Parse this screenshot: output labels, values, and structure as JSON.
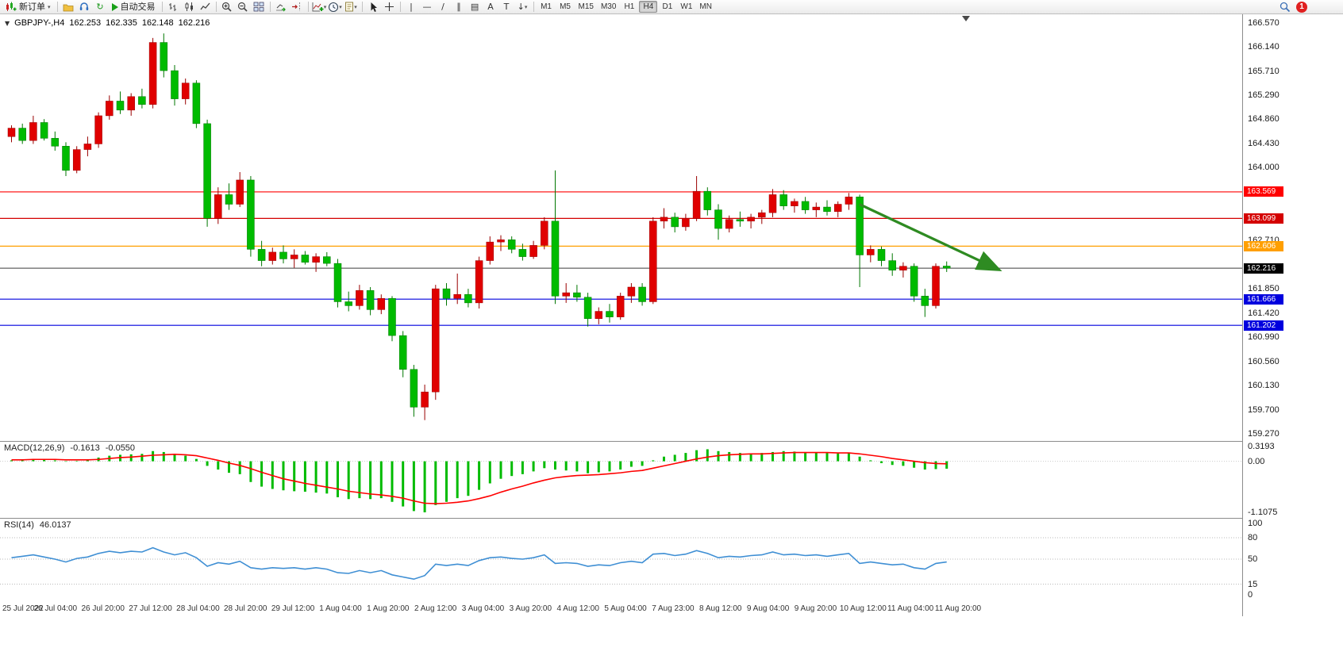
{
  "toolbar": {
    "new_order_label": "新订单",
    "auto_trading_label": "自动交易",
    "timeframes": [
      "M1",
      "M5",
      "M15",
      "M30",
      "H1",
      "H4",
      "D1",
      "W1",
      "MN"
    ],
    "active_timeframe": "H4",
    "notification_count": "1",
    "icons": {
      "caret": "▾",
      "refresh": "↻",
      "vertical_line": "|",
      "horizontal_line": "—",
      "trendline": "/",
      "channel": "∥",
      "fibonacci": "▤",
      "text": "A",
      "text_label": "T",
      "arrow_tool": "↓"
    }
  },
  "chart_header": {
    "menu_marker": "▼",
    "symbol_period": "GBPJPY-,H4",
    "open": "162.253",
    "high": "162.335",
    "low": "162.148",
    "close": "162.216"
  },
  "indicator_labels": {
    "macd_name": "MACD(12,26,9)",
    "macd_value1": "-0.1613",
    "macd_value2": "-0.0550",
    "rsi_name": "RSI(14)",
    "rsi_value": "46.0137"
  },
  "chart_data": {
    "type": "candlestick+indicators",
    "symbol": "GBPJPY-",
    "period": "H4",
    "price": {
      "ylim": [
        159.15,
        166.72
      ],
      "ticks": [
        {
          "v": 166.57,
          "label": "166.570"
        },
        {
          "v": 166.14,
          "label": "166.140"
        },
        {
          "v": 165.71,
          "label": "165.710"
        },
        {
          "v": 165.29,
          "label": "165.290"
        },
        {
          "v": 164.86,
          "label": "164.860"
        },
        {
          "v": 164.43,
          "label": "164.430"
        },
        {
          "v": 164.0,
          "label": "164.000"
        },
        {
          "v": 162.71,
          "label": "162.710"
        },
        {
          "v": 161.85,
          "label": "161.850"
        },
        {
          "v": 161.42,
          "label": "161.420"
        },
        {
          "v": 160.99,
          "label": "160.990"
        },
        {
          "v": 160.56,
          "label": "160.560"
        },
        {
          "v": 160.13,
          "label": "160.130"
        },
        {
          "v": 159.7,
          "label": "159.700"
        },
        {
          "v": 159.27,
          "label": "159.270"
        }
      ],
      "levels": [
        {
          "price": 163.569,
          "label": "163.569",
          "color": "#FF0000"
        },
        {
          "price": 163.099,
          "label": "163.099",
          "color": "#D40000"
        },
        {
          "price": 162.606,
          "label": "162.606",
          "color": "#FF9F00"
        },
        {
          "price": 161.666,
          "label": "161.666",
          "color": "#0000DE"
        },
        {
          "price": 161.202,
          "label": "161.202",
          "color": "#0000DE"
        }
      ],
      "current_price": {
        "price": 162.216,
        "label": "162.216",
        "color": "#000000"
      },
      "up_color": "#E00000",
      "down_color": "#00BB00",
      "candles": [
        [
          164.55,
          164.75,
          164.45,
          164.7
        ],
        [
          164.7,
          164.78,
          164.42,
          164.48
        ],
        [
          164.48,
          164.92,
          164.42,
          164.8
        ],
        [
          164.8,
          164.86,
          164.48,
          164.52
        ],
        [
          164.52,
          164.64,
          164.3,
          164.38
        ],
        [
          164.38,
          164.45,
          163.85,
          163.95
        ],
        [
          163.95,
          164.38,
          163.9,
          164.32
        ],
        [
          164.32,
          164.55,
          164.2,
          164.42
        ],
        [
          164.42,
          164.98,
          164.35,
          164.92
        ],
        [
          164.92,
          165.28,
          164.85,
          165.18
        ],
        [
          165.18,
          165.35,
          164.95,
          165.02
        ],
        [
          165.02,
          165.32,
          164.92,
          165.26
        ],
        [
          165.26,
          165.4,
          165.05,
          165.12
        ],
        [
          165.12,
          166.3,
          165.05,
          166.22
        ],
        [
          166.22,
          166.38,
          165.6,
          165.72
        ],
        [
          165.72,
          165.82,
          165.1,
          165.22
        ],
        [
          165.22,
          165.58,
          165.12,
          165.5
        ],
        [
          165.5,
          165.55,
          164.7,
          164.78
        ],
        [
          164.78,
          164.85,
          162.95,
          163.1
        ],
        [
          163.1,
          163.65,
          163.0,
          163.52
        ],
        [
          163.52,
          163.72,
          163.25,
          163.35
        ],
        [
          163.35,
          163.92,
          163.3,
          163.78
        ],
        [
          163.78,
          163.85,
          162.42,
          162.55
        ],
        [
          162.55,
          162.7,
          162.25,
          162.35
        ],
        [
          162.35,
          162.58,
          162.28,
          162.5
        ],
        [
          162.5,
          162.62,
          162.3,
          162.38
        ],
        [
          162.38,
          162.55,
          162.22,
          162.45
        ],
        [
          162.45,
          162.52,
          162.28,
          162.32
        ],
        [
          162.32,
          162.48,
          162.15,
          162.42
        ],
        [
          162.42,
          162.5,
          162.25,
          162.3
        ],
        [
          162.3,
          162.38,
          161.52,
          161.62
        ],
        [
          161.62,
          161.8,
          161.45,
          161.55
        ],
        [
          161.55,
          161.92,
          161.48,
          161.82
        ],
        [
          161.82,
          161.88,
          161.38,
          161.48
        ],
        [
          161.48,
          161.75,
          161.4,
          161.68
        ],
        [
          161.68,
          161.72,
          160.92,
          161.02
        ],
        [
          161.02,
          161.1,
          160.28,
          160.42
        ],
        [
          160.42,
          160.5,
          159.58,
          159.75
        ],
        [
          159.75,
          160.15,
          159.52,
          160.02
        ],
        [
          160.02,
          161.92,
          159.88,
          161.85
        ],
        [
          161.85,
          161.95,
          161.55,
          161.68
        ],
        [
          161.68,
          162.12,
          161.58,
          161.75
        ],
        [
          161.75,
          161.85,
          161.52,
          161.6
        ],
        [
          161.6,
          162.42,
          161.5,
          162.35
        ],
        [
          162.35,
          162.78,
          162.28,
          162.68
        ],
        [
          162.68,
          162.8,
          162.52,
          162.72
        ],
        [
          162.72,
          162.78,
          162.48,
          162.55
        ],
        [
          162.55,
          162.65,
          162.35,
          162.42
        ],
        [
          162.42,
          162.7,
          162.38,
          162.62
        ],
        [
          162.62,
          163.12,
          162.55,
          163.05
        ],
        [
          163.05,
          163.95,
          161.58,
          161.72
        ],
        [
          161.72,
          161.95,
          161.6,
          161.78
        ],
        [
          161.78,
          161.92,
          161.62,
          161.7
        ],
        [
          161.7,
          161.78,
          161.18,
          161.32
        ],
        [
          161.32,
          161.52,
          161.22,
          161.45
        ],
        [
          161.45,
          161.58,
          161.25,
          161.35
        ],
        [
          161.35,
          161.78,
          161.3,
          161.72
        ],
        [
          161.72,
          161.95,
          161.6,
          161.88
        ],
        [
          161.88,
          161.95,
          161.55,
          161.62
        ],
        [
          161.62,
          163.12,
          161.58,
          163.05
        ],
        [
          163.05,
          163.28,
          162.92,
          163.12
        ],
        [
          163.12,
          163.2,
          162.85,
          162.95
        ],
        [
          162.95,
          163.18,
          162.88,
          163.1
        ],
        [
          163.1,
          163.85,
          163.05,
          163.58
        ],
        [
          163.58,
          163.65,
          163.15,
          163.25
        ],
        [
          163.25,
          163.35,
          162.72,
          162.92
        ],
        [
          162.92,
          163.15,
          162.85,
          163.08
        ],
        [
          163.08,
          163.22,
          162.95,
          163.05
        ],
        [
          163.05,
          163.18,
          162.92,
          163.12
        ],
        [
          163.12,
          163.25,
          163.0,
          163.2
        ],
        [
          163.2,
          163.62,
          163.12,
          163.52
        ],
        [
          163.52,
          163.6,
          163.25,
          163.32
        ],
        [
          163.32,
          163.45,
          163.2,
          163.4
        ],
        [
          163.4,
          163.48,
          163.18,
          163.25
        ],
        [
          163.25,
          163.38,
          163.12,
          163.3
        ],
        [
          163.3,
          163.42,
          163.15,
          163.22
        ],
        [
          163.22,
          163.4,
          163.12,
          163.35
        ],
        [
          163.35,
          163.55,
          163.25,
          163.48
        ],
        [
          163.48,
          163.52,
          161.88,
          162.45
        ],
        [
          162.45,
          162.62,
          162.32,
          162.55
        ],
        [
          162.55,
          162.6,
          162.25,
          162.35
        ],
        [
          162.35,
          162.48,
          162.08,
          162.18
        ],
        [
          162.18,
          162.32,
          162.05,
          162.25
        ],
        [
          162.25,
          162.3,
          161.62,
          161.72
        ],
        [
          161.72,
          161.85,
          161.35,
          161.55
        ],
        [
          161.55,
          162.3,
          161.5,
          162.25
        ],
        [
          162.253,
          162.335,
          162.148,
          162.216
        ]
      ]
    },
    "x_labels": [
      "25 Jul 2022",
      "26 Jul 04:00",
      "26 Jul 20:00",
      "27 Jul 12:00",
      "28 Jul 04:00",
      "28 Jul 20:00",
      "29 Jul 12:00",
      "1 Aug 04:00",
      "1 Aug 20:00",
      "2 Aug 12:00",
      "3 Aug 04:00",
      "3 Aug 20:00",
      "4 Aug 12:00",
      "5 Aug 04:00",
      "7 Aug 23:00",
      "8 Aug 12:00",
      "9 Aug 04:00",
      "9 Aug 20:00",
      "10 Aug 12:00",
      "11 Aug 04:00",
      "11 Aug 20:00"
    ],
    "trend_arrow": {
      "from_index": 78.3,
      "from_price": 163.35,
      "to_index": 91,
      "to_price": 162.2,
      "color": "#2E8B22"
    },
    "macd": {
      "name": "MACD(12,26,9)",
      "ylim": [
        -1.1075,
        0.3193
      ],
      "ticks": [
        {
          "v": 0.3193,
          "label": "0.3193"
        },
        {
          "v": 0,
          "label": "0.00"
        },
        {
          "v": -1.1075,
          "label": "-1.1075"
        }
      ],
      "histogram_color": "#00BB00",
      "signal_color": "#FF0000",
      "histogram": [
        0.02,
        0.03,
        0.05,
        0.04,
        0.02,
        -0.01,
        0.01,
        0.03,
        0.08,
        0.12,
        0.14,
        0.15,
        0.16,
        0.22,
        0.2,
        0.16,
        0.12,
        0.05,
        -0.1,
        -0.18,
        -0.25,
        -0.28,
        -0.45,
        -0.55,
        -0.6,
        -0.63,
        -0.65,
        -0.66,
        -0.68,
        -0.7,
        -0.78,
        -0.82,
        -0.8,
        -0.82,
        -0.8,
        -0.88,
        -0.98,
        -1.08,
        -1.1075,
        -0.95,
        -0.88,
        -0.8,
        -0.75,
        -0.62,
        -0.48,
        -0.38,
        -0.32,
        -0.28,
        -0.22,
        -0.15,
        -0.18,
        -0.2,
        -0.22,
        -0.26,
        -0.24,
        -0.22,
        -0.18,
        -0.12,
        -0.1,
        0.02,
        0.1,
        0.14,
        0.18,
        0.24,
        0.26,
        0.22,
        0.2,
        0.18,
        0.17,
        0.18,
        0.2,
        0.22,
        0.21,
        0.2,
        0.19,
        0.18,
        0.17,
        0.18,
        0.1,
        0.02,
        -0.04,
        -0.08,
        -0.1,
        -0.14,
        -0.18,
        -0.17,
        -0.1613
      ],
      "signal": [
        0.03,
        0.03,
        0.04,
        0.04,
        0.04,
        0.03,
        0.03,
        0.03,
        0.04,
        0.06,
        0.08,
        0.09,
        0.11,
        0.13,
        0.14,
        0.15,
        0.14,
        0.12,
        0.07,
        0.02,
        -0.04,
        -0.09,
        -0.16,
        -0.24,
        -0.31,
        -0.38,
        -0.43,
        -0.48,
        -0.52,
        -0.56,
        -0.6,
        -0.65,
        -0.68,
        -0.71,
        -0.73,
        -0.76,
        -0.8,
        -0.86,
        -0.91,
        -0.92,
        -0.91,
        -0.89,
        -0.86,
        -0.81,
        -0.75,
        -0.67,
        -0.6,
        -0.54,
        -0.47,
        -0.41,
        -0.36,
        -0.33,
        -0.31,
        -0.3,
        -0.29,
        -0.27,
        -0.25,
        -0.22,
        -0.2,
        -0.15,
        -0.1,
        -0.05,
        0.0,
        0.05,
        0.09,
        0.12,
        0.14,
        0.15,
        0.16,
        0.16,
        0.17,
        0.18,
        0.19,
        0.19,
        0.19,
        0.19,
        0.18,
        0.18,
        0.16,
        0.13,
        0.1,
        0.06,
        0.03,
        0.0,
        -0.03,
        -0.05,
        -0.055
      ]
    },
    "rsi": {
      "name": "RSI(14)",
      "ylim": [
        0,
        100
      ],
      "ticks": [
        {
          "v": 100,
          "label": "100"
        },
        {
          "v": 80,
          "label": "80"
        },
        {
          "v": 50,
          "label": "50"
        },
        {
          "v": 15,
          "label": "15"
        },
        {
          "v": 0,
          "label": "0"
        }
      ],
      "level_lines": [
        80,
        50,
        15
      ],
      "line_color": "#3F8FD4",
      "values": [
        52,
        54,
        56,
        53,
        50,
        46,
        51,
        53,
        58,
        61,
        59,
        61,
        60,
        66,
        60,
        56,
        59,
        52,
        40,
        45,
        43,
        47,
        38,
        36,
        38,
        37,
        38,
        36,
        38,
        36,
        31,
        30,
        34,
        31,
        34,
        28,
        25,
        22,
        27,
        43,
        41,
        43,
        41,
        48,
        52,
        53,
        51,
        50,
        52,
        56,
        44,
        45,
        44,
        40,
        42,
        41,
        45,
        47,
        45,
        57,
        58,
        55,
        57,
        62,
        58,
        52,
        54,
        53,
        55,
        56,
        60,
        56,
        57,
        55,
        56,
        54,
        56,
        58,
        44,
        46,
        44,
        42,
        43,
        38,
        36,
        44,
        46.0137
      ]
    }
  }
}
